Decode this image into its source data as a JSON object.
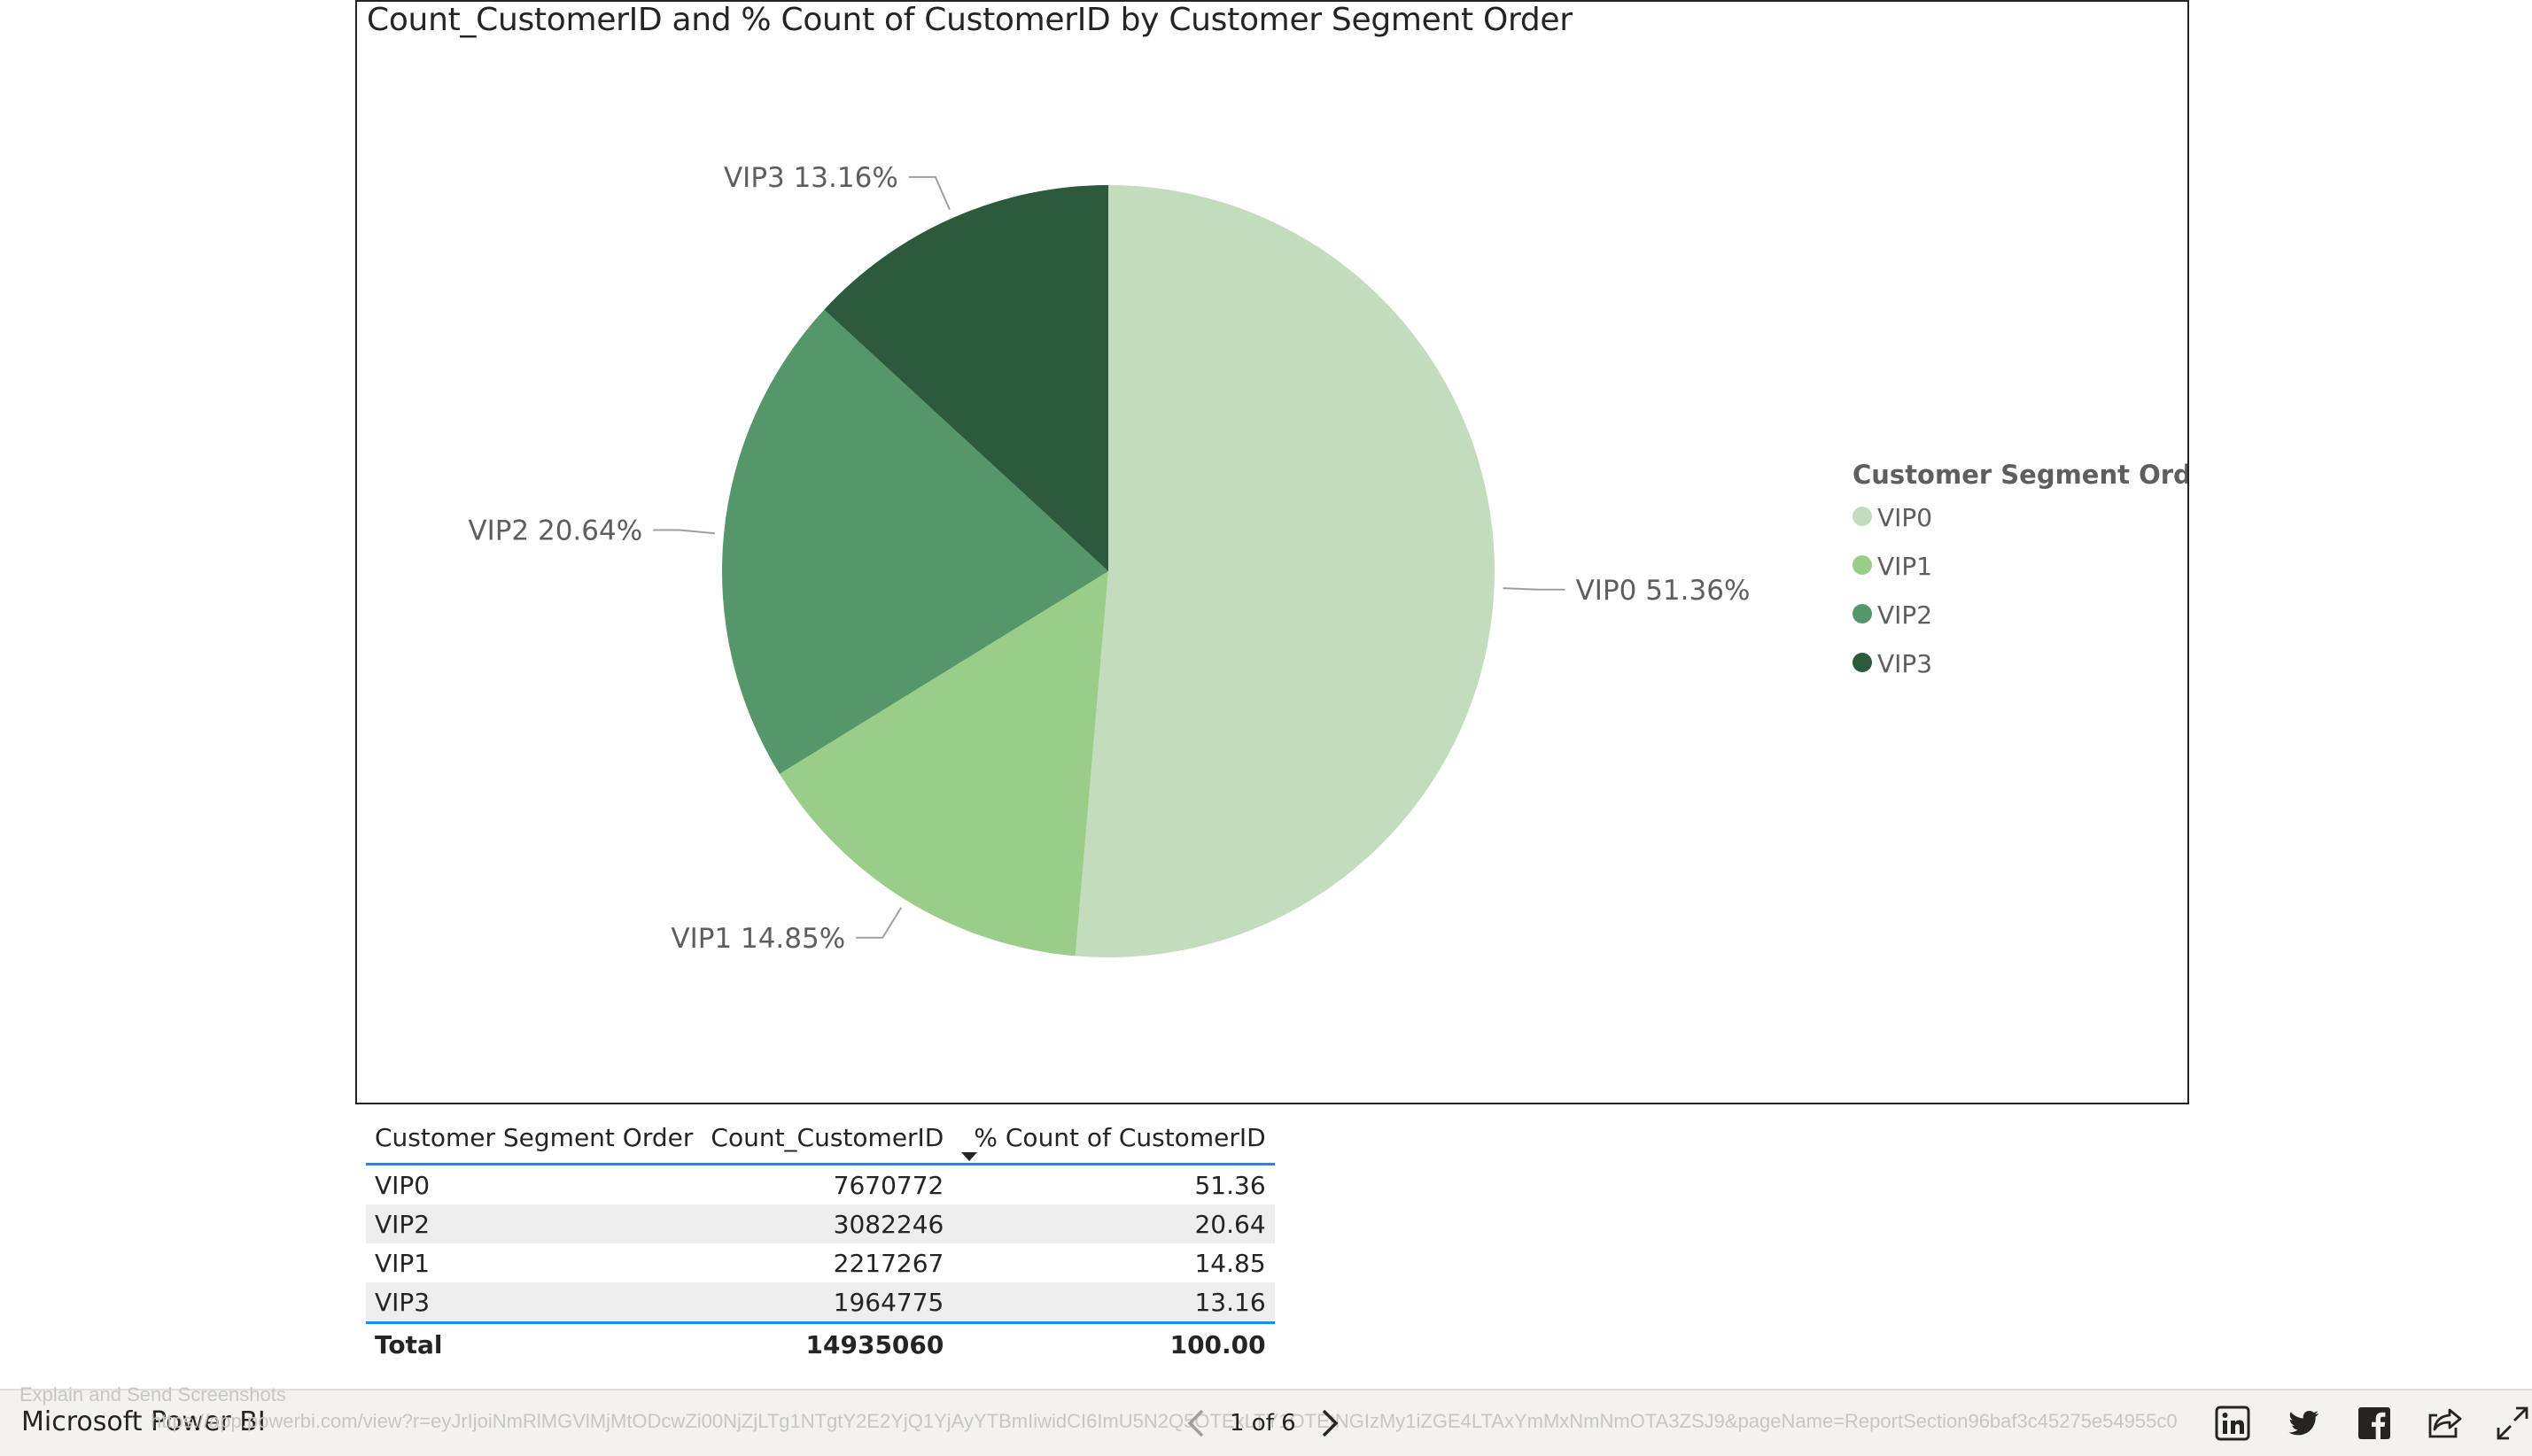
{
  "chart": {
    "title": "Count_CustomerID and % Count of CustomerID by Customer Segment Order"
  },
  "chart_data": {
    "type": "pie",
    "title": "Count_CustomerID and % Count of CustomerID by Customer Segment Order",
    "categories": [
      "VIP0",
      "VIP1",
      "VIP2",
      "VIP3"
    ],
    "values": [
      7670772,
      2217267,
      3082246,
      1964775
    ],
    "percent_labels": [
      "51.36%",
      "14.85%",
      "20.64%",
      "13.16%"
    ],
    "colors": [
      "#c3dcbd",
      "#9bcd8a",
      "#55966a",
      "#2d5a3c"
    ],
    "legend_title": "Customer Segment Order",
    "legend_position": "right"
  },
  "table": {
    "headers": [
      "Customer Segment Order",
      "Count_CustomerID",
      "% Count of CustomerID"
    ],
    "rows": [
      [
        "VIP0",
        "7670772",
        "51.36"
      ],
      [
        "VIP2",
        "3082246",
        "20.64"
      ],
      [
        "VIP1",
        "2217267",
        "14.85"
      ],
      [
        "VIP3",
        "1964775",
        "13.16"
      ]
    ],
    "total": [
      "Total",
      "14935060",
      "100.00"
    ]
  },
  "bottom_bar": {
    "tooltip": "Explain and Send Screenshots",
    "brand": "Microsoft Power BI",
    "url": "https://app.powerbi.com/view?r=eyJrIjoiNmRlMGVlMjMtODcwZi00NjZjLTg1NTgtY2E2YjQ1YjAyYTBmIiwidCI6ImU5N2Q5OTExLTY1OTEtNGIzMy1iZGE4LTAxYmMxNmNmOTA3ZSJ9&pageName=ReportSection96baf3c45275e54955c0",
    "page_indicator": "1 of 6",
    "icons": [
      "linkedin-icon",
      "twitter-icon",
      "facebook-icon",
      "share-icon",
      "fullscreen-icon"
    ]
  }
}
